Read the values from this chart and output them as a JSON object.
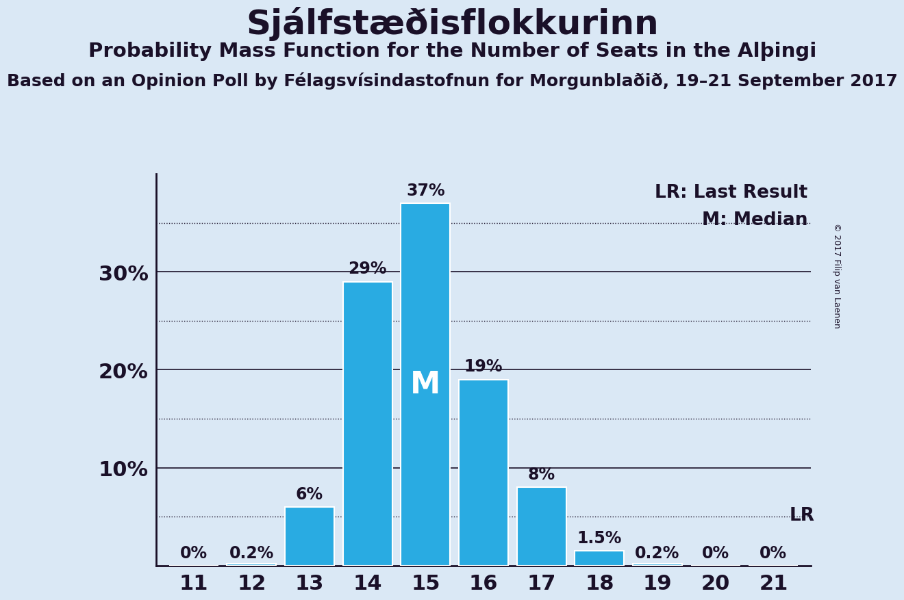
{
  "title": "Sjálfstæðisflokkurinn",
  "subtitle_text": "Probability Mass Function for the Number of Seats in the Alþingi",
  "source_line": "Based on an Opinion Poll by Félagsvísindastofnun for Morgunblaðið, 19–21 September 2017",
  "copyright": "© 2017 Filip van Laenen",
  "seats": [
    11,
    12,
    13,
    14,
    15,
    16,
    17,
    18,
    19,
    20,
    21
  ],
  "probabilities": [
    0.0,
    0.2,
    6.0,
    29.0,
    37.0,
    19.0,
    8.0,
    1.5,
    0.2,
    0.0,
    0.0
  ],
  "bar_color": "#29ABE2",
  "background_color": "#DAE8F5",
  "text_color": "#1a1028",
  "median_seat": 15,
  "lr_value": 5.0,
  "yticks": [
    10,
    20,
    30
  ],
  "dotted_gridlines": [
    5,
    15,
    25,
    35
  ],
  "solid_gridlines": [
    10,
    20,
    30
  ],
  "ymax": 40,
  "legend_lr": "LR: Last Result",
  "legend_m": "M: Median"
}
